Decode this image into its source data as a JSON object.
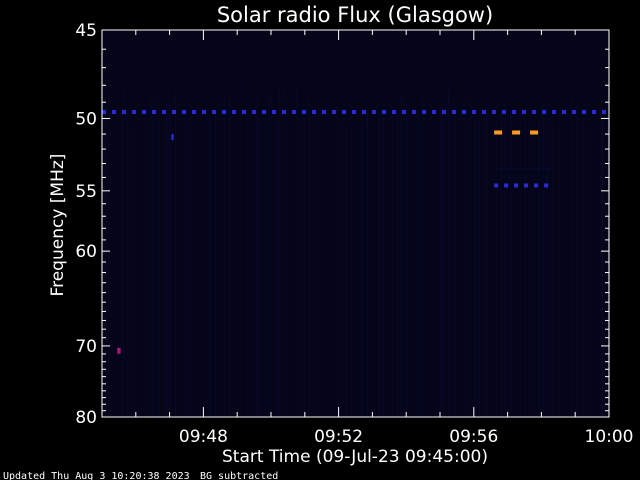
{
  "chart_data": {
    "type": "heatmap",
    "title": "Solar radio Flux (Glasgow)",
    "xlabel": "Start Time (09-Jul-23 09:45:00)",
    "ylabel": "Frequency [MHz]",
    "x_axis": {
      "start": "09:45",
      "end": "10:00",
      "tick_labels": [
        "09:48",
        "09:52",
        "09:56",
        "10:00"
      ],
      "tick_minutes": [
        3,
        7,
        11,
        15
      ]
    },
    "y_axis": {
      "ylim": [
        80,
        45
      ],
      "scale": "reciprocal",
      "tick_labels": [
        "45",
        "50",
        "55",
        "60",
        "70",
        "80"
      ],
      "tick_values": [
        45,
        50,
        55,
        60,
        70,
        80
      ]
    },
    "colors": {
      "background": "#000000",
      "plot_background": "#05051a",
      "low": "#0b0b3a",
      "medium": "#2a2ad8",
      "high": "#ff9a1f",
      "spot": "#b01080"
    },
    "features": [
      {
        "name": "continuous band",
        "freq_mhz": 49.6,
        "t_start_min": 0.0,
        "t_end_min": 15.0,
        "intensity": "medium",
        "style": "dashed"
      },
      {
        "name": "narrow band",
        "freq_mhz": 50.9,
        "t_start_min": 11.6,
        "t_end_min": 13.3,
        "intensity": "high",
        "style": "dashed"
      },
      {
        "name": "narrow band",
        "freq_mhz": 54.6,
        "t_start_min": 11.6,
        "t_end_min": 13.3,
        "intensity": "medium",
        "style": "dashed"
      },
      {
        "name": "faint band",
        "freq_mhz": 53.4,
        "t_start_min": 11.6,
        "t_end_min": 13.3,
        "intensity": "low",
        "style": "solid"
      },
      {
        "name": "spot",
        "freq_mhz": 70.6,
        "t_start_min": 0.45,
        "t_end_min": 0.55,
        "intensity": "spot",
        "style": "solid"
      },
      {
        "name": "spot",
        "freq_mhz": 51.2,
        "t_start_min": 2.05,
        "t_end_min": 2.12,
        "intensity": "medium",
        "style": "solid"
      }
    ]
  },
  "footer": {
    "updated": "Updated Thu Aug  3 10:20:38 2023",
    "bg": "BG subtracted"
  }
}
